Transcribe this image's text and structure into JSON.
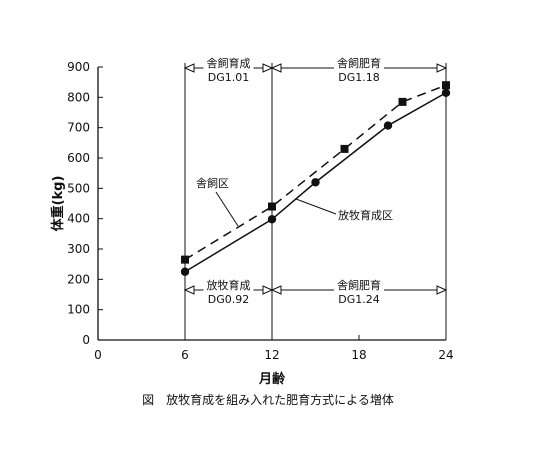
{
  "chart_data": {
    "type": "line",
    "caption": "図　放牧育成を組み入れた肥育方式による増体",
    "xlabel": "月齢",
    "ylabel": "体重(kg)",
    "xlim": [
      0,
      24
    ],
    "ylim": [
      0,
      900
    ],
    "x_ticks": [
      0,
      6,
      12,
      18,
      24
    ],
    "y_ticks": [
      0,
      100,
      200,
      300,
      400,
      500,
      600,
      700,
      800,
      900
    ],
    "grid": false,
    "series": [
      {
        "name": "舎飼区",
        "marker": "square",
        "line": "dashed",
        "x": [
          6,
          12,
          17,
          21,
          24
        ],
        "y": [
          265,
          440,
          630,
          785,
          840
        ]
      },
      {
        "name": "放牧育成区",
        "marker": "circle",
        "line": "solid",
        "x": [
          6,
          12,
          15,
          20,
          24
        ],
        "y": [
          225,
          398,
          520,
          707,
          815
        ]
      }
    ],
    "period_annotations": [
      {
        "title": "舎飼育成",
        "value": "DG1.01",
        "x_start": 6,
        "x_end": 12,
        "position": "top"
      },
      {
        "title": "舎飼肥育",
        "value": "DG1.18",
        "x_start": 12,
        "x_end": 24,
        "position": "top"
      },
      {
        "title": "放牧育成",
        "value": "DG0.92",
        "x_start": 6,
        "x_end": 12,
        "position": "bottom"
      },
      {
        "title": "舎飼肥育",
        "value": "DG1.24",
        "x_start": 12,
        "x_end": 24,
        "position": "bottom"
      }
    ],
    "vertical_lines_x": [
      6,
      12,
      24
    ]
  }
}
